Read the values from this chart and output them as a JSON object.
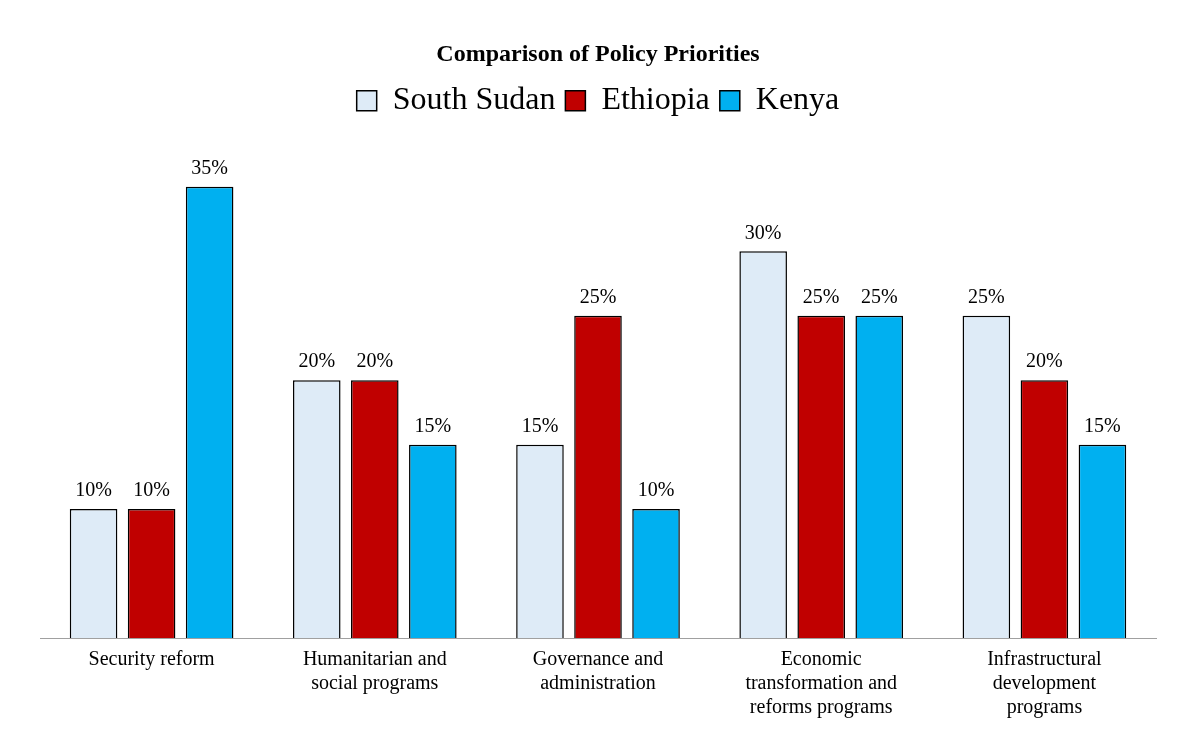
{
  "chart_data": {
    "type": "bar",
    "title": "Comparison of Policy Priorities",
    "categories": [
      "Security reform",
      "Humanitarian and social programs",
      "Governance and administration",
      "Economic transformation and reforms programs",
      "Infrastructural development programs"
    ],
    "series": [
      {
        "name": "South Sudan",
        "color": "#deebf7",
        "values": [
          10,
          20,
          15,
          30,
          25
        ],
        "value_labels": [
          "10%",
          "20%",
          "15%",
          "30%",
          "25%"
        ]
      },
      {
        "name": "Ethiopia",
        "color": "#c00000",
        "values": [
          10,
          20,
          25,
          25,
          20
        ],
        "value_labels": [
          "10%",
          "20%",
          "25%",
          "25%",
          "20%"
        ]
      },
      {
        "name": "Kenya",
        "color": "#00b0f0",
        "values": [
          35,
          15,
          10,
          25,
          15
        ],
        "value_labels": [
          "35%",
          "15%",
          "10%",
          "25%",
          "15%"
        ]
      }
    ],
    "legend": "top",
    "grid": false,
    "tick_labels": "x"
  }
}
